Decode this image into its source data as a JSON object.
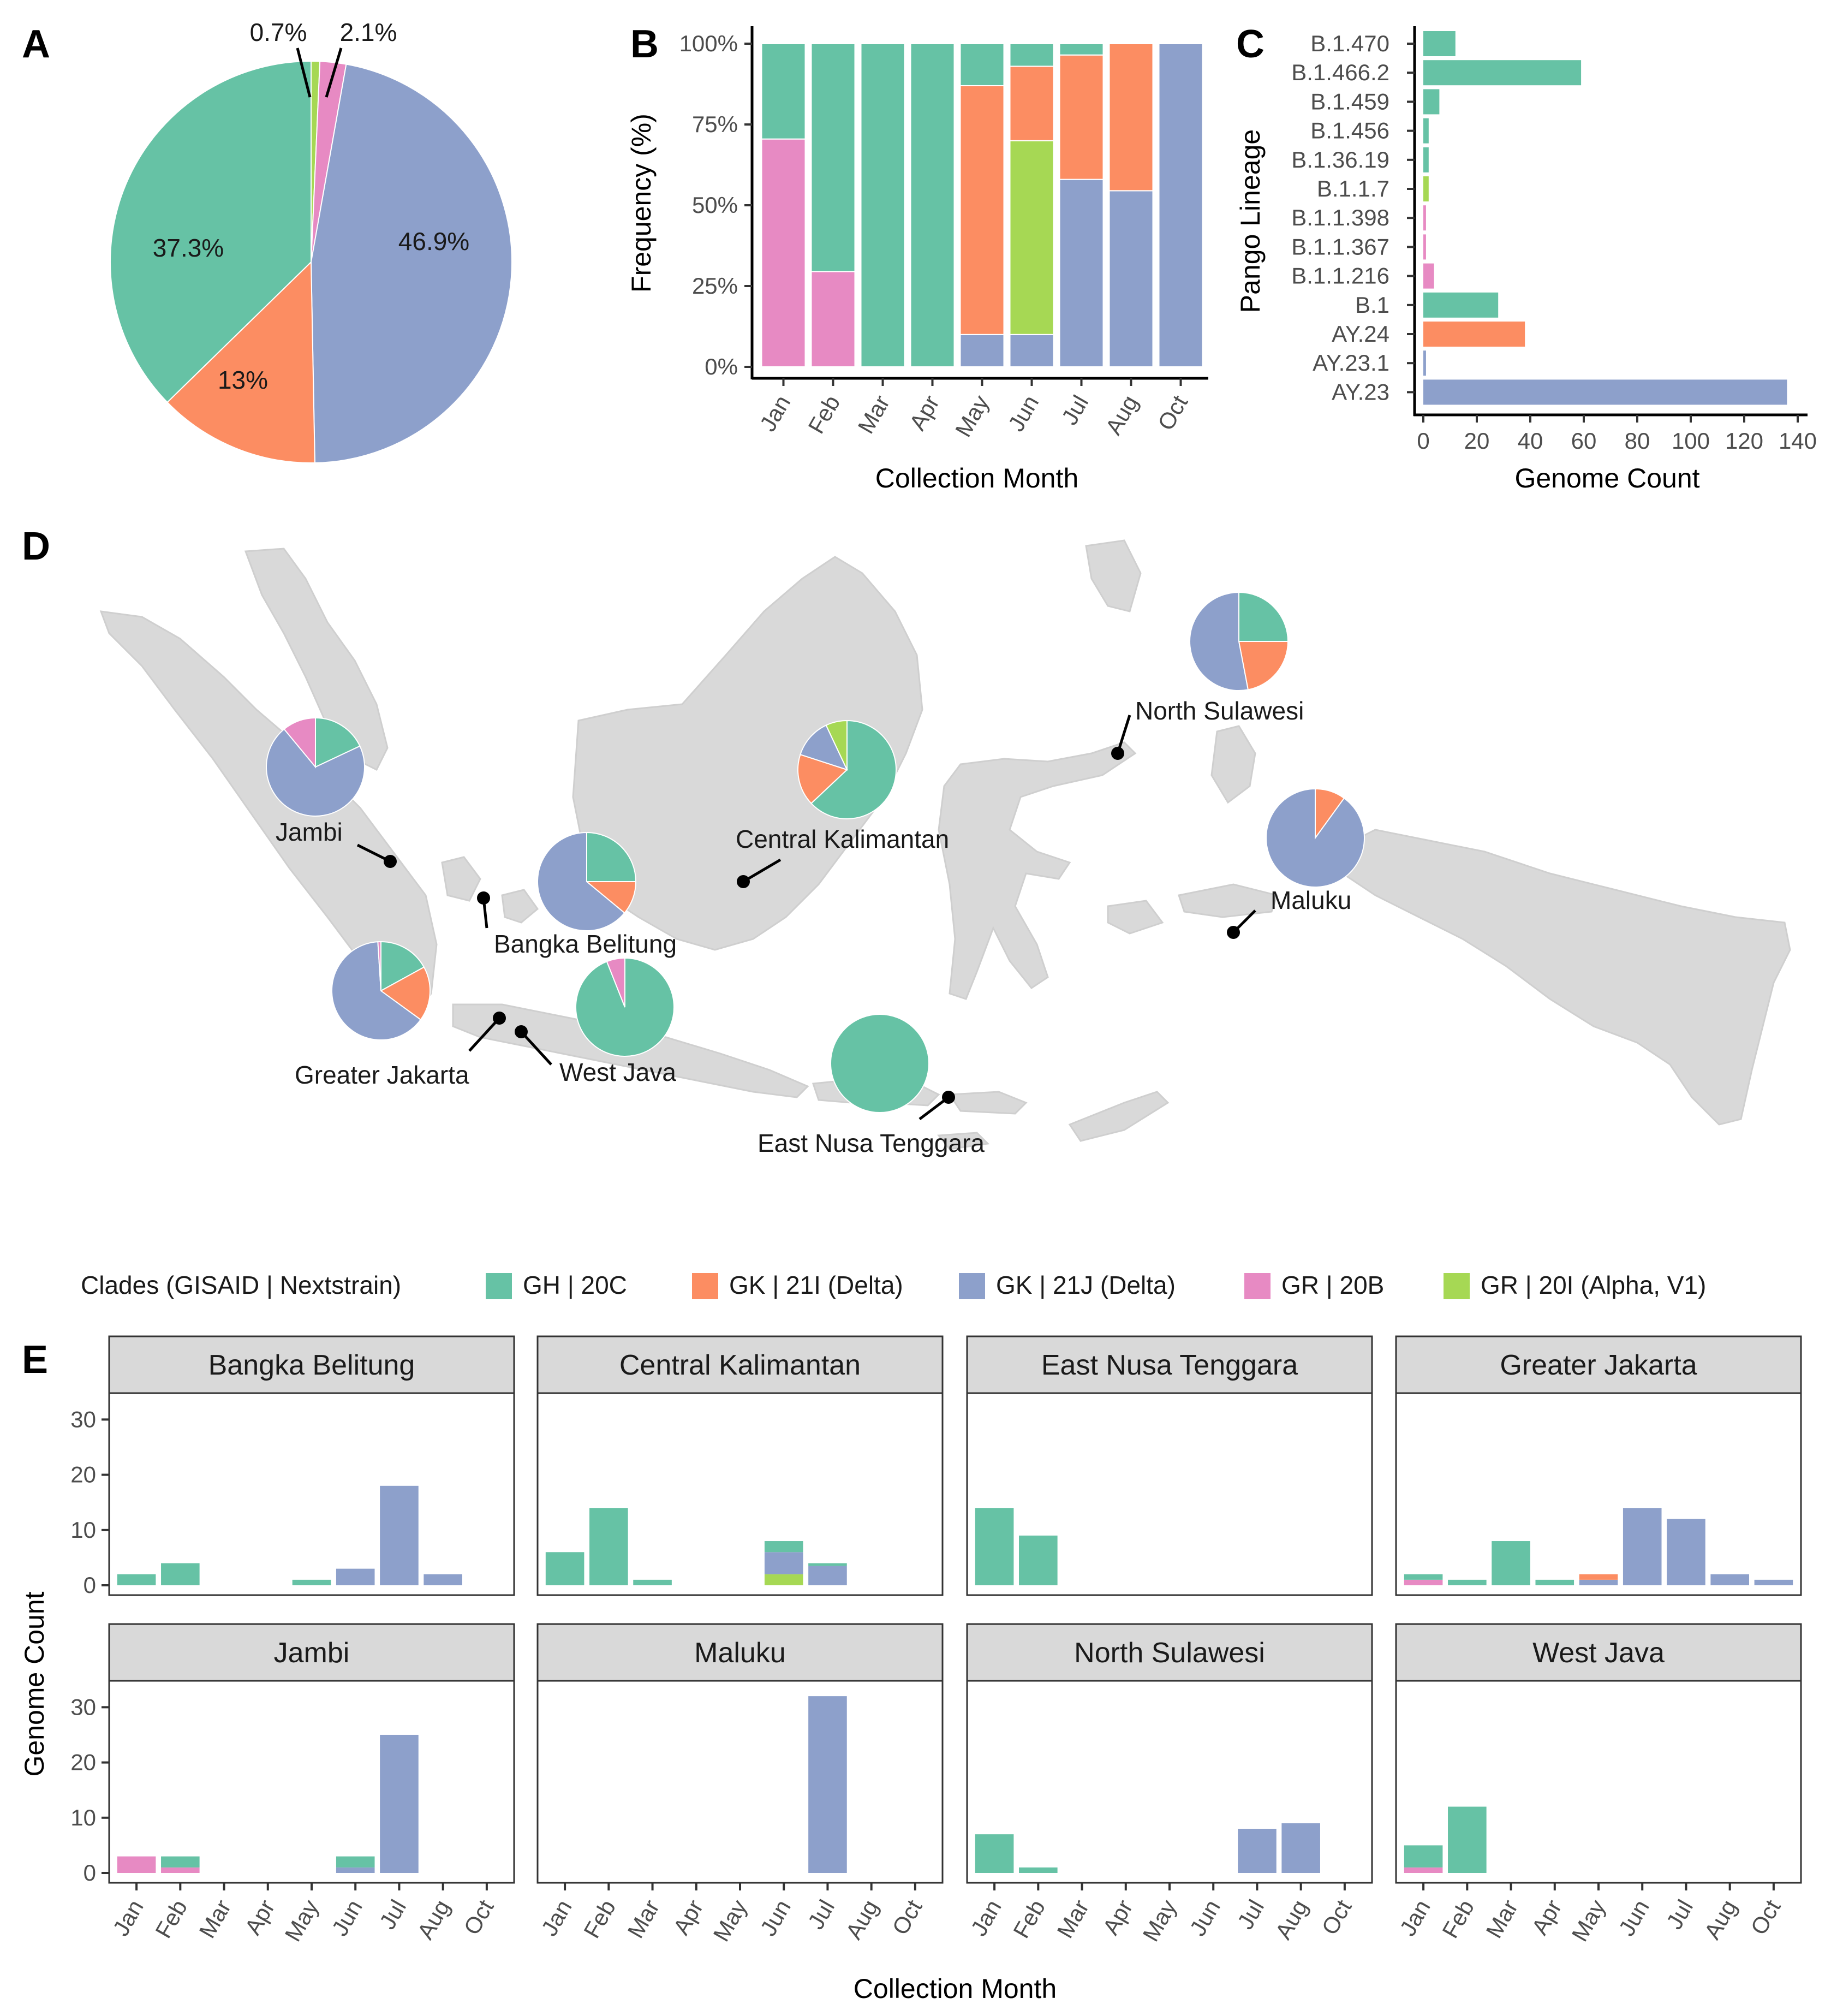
{
  "colors": {
    "GH | 20C": "#66c2a5",
    "GK | 21I (Delta)": "#fc8d62",
    "GK | 21J (Delta)": "#8da0cb",
    "GR | 20B": "#e78ac3",
    "GR | 20I (Alpha, V1)": "#a6d854",
    "land": "#d9d9d9",
    "strip": "#d9d9d9"
  },
  "panels": {
    "A": {
      "letter": "A"
    },
    "B": {
      "letter": "B"
    },
    "C": {
      "letter": "C"
    },
    "D": {
      "letter": "D"
    },
    "E": {
      "letter": "E"
    }
  },
  "legend": {
    "title": "Clades (GISAID | Nextstrain)",
    "items": [
      "GH | 20C",
      "GK | 21I (Delta)",
      "GK | 21J (Delta)",
      "GR | 20B",
      "GR | 20I (Alpha, V1)"
    ]
  },
  "chart_data": [
    {
      "panel": "A",
      "type": "pie",
      "slices": [
        {
          "clade": "GR | 20I (Alpha, V1)",
          "value": 0.7,
          "label": "0.7%"
        },
        {
          "clade": "GR | 20B",
          "value": 2.1,
          "label": "2.1%"
        },
        {
          "clade": "GK | 21J (Delta)",
          "value": 46.9,
          "label": "46.9%"
        },
        {
          "clade": "GK | 21I (Delta)",
          "value": 13.0,
          "label": "13%"
        },
        {
          "clade": "GH | 20C",
          "value": 37.3,
          "label": "37.3%"
        }
      ]
    },
    {
      "panel": "B",
      "type": "bar",
      "stacked": true,
      "xlabel": "Collection Month",
      "ylabel": "Frequency (%)",
      "ytick_labels": [
        "0%",
        "25%",
        "50%",
        "75%",
        "100%"
      ],
      "ylim": [
        0,
        100
      ],
      "categories": [
        "Jan",
        "Feb",
        "Mar",
        "Apr",
        "May",
        "Jun",
        "Jul",
        "Aug",
        "Oct"
      ],
      "series": [
        {
          "name": "GR | 20B",
          "values": [
            70.5,
            29.5,
            0,
            0,
            0,
            0,
            0,
            0,
            0
          ]
        },
        {
          "name": "GK | 21J (Delta)",
          "values": [
            0,
            0,
            0,
            0,
            10,
            10,
            58,
            54.5,
            100
          ]
        },
        {
          "name": "GR | 20I (Alpha, V1)",
          "values": [
            0,
            0,
            0,
            0,
            0,
            60,
            0,
            0,
            0
          ]
        },
        {
          "name": "GK | 21I (Delta)",
          "values": [
            0,
            0,
            0,
            0,
            77,
            23,
            38.5,
            45.5,
            0
          ]
        },
        {
          "name": "GH | 20C",
          "values": [
            29.5,
            70.5,
            100,
            100,
            13,
            7,
            3.5,
            0,
            0
          ]
        }
      ]
    },
    {
      "panel": "C",
      "type": "bar",
      "orientation": "horizontal",
      "xlabel": "Genome Count",
      "ylabel": "Pango Lineage",
      "xlim": [
        0,
        140
      ],
      "xticks": [
        0,
        20,
        40,
        60,
        80,
        100,
        120,
        140
      ],
      "categories": [
        "B.1.470",
        "B.1.466.2",
        "B.1.459",
        "B.1.456",
        "B.1.36.19",
        "B.1.1.7",
        "B.1.1.398",
        "B.1.1.367",
        "B.1.1.216",
        "B.1",
        "AY.24",
        "AY.23.1",
        "AY.23"
      ],
      "values": [
        12,
        59,
        6,
        2,
        2,
        2,
        1,
        1,
        4,
        28,
        38,
        1,
        136
      ],
      "clades": [
        "GH | 20C",
        "GH | 20C",
        "GH | 20C",
        "GH | 20C",
        "GH | 20C",
        "GR | 20I (Alpha, V1)",
        "GR | 20B",
        "GR | 20B",
        "GR | 20B",
        "GH | 20C",
        "GK | 21I (Delta)",
        "GK | 21J (Delta)",
        "GK | 21J (Delta)"
      ]
    },
    {
      "panel": "D",
      "type": "map",
      "regions": [
        {
          "name": "North Sulawesi",
          "slices": [
            {
              "clade": "GH | 20C",
              "value": 25
            },
            {
              "clade": "GK | 21I (Delta)",
              "value": 22
            },
            {
              "clade": "GK | 21J (Delta)",
              "value": 53
            }
          ]
        },
        {
          "name": "Jambi",
          "slices": [
            {
              "clade": "GH | 20C",
              "value": 18
            },
            {
              "clade": "GK | 21J (Delta)",
              "value": 71
            },
            {
              "clade": "GR | 20B",
              "value": 11
            }
          ]
        },
        {
          "name": "Central Kalimantan",
          "slices": [
            {
              "clade": "GH | 20C",
              "value": 63
            },
            {
              "clade": "GK | 21I (Delta)",
              "value": 17
            },
            {
              "clade": "GK | 21J (Delta)",
              "value": 13
            },
            {
              "clade": "GR | 20I (Alpha, V1)",
              "value": 7
            }
          ]
        },
        {
          "name": "Bangka Belitung",
          "slices": [
            {
              "clade": "GH | 20C",
              "value": 25
            },
            {
              "clade": "GK | 21I (Delta)",
              "value": 11
            },
            {
              "clade": "GK | 21J (Delta)",
              "value": 64
            }
          ]
        },
        {
          "name": "Maluku",
          "slices": [
            {
              "clade": "GK | 21I (Delta)",
              "value": 10
            },
            {
              "clade": "GK | 21J (Delta)",
              "value": 90
            }
          ]
        },
        {
          "name": "Greater Jakarta",
          "slices": [
            {
              "clade": "GH | 20C",
              "value": 17
            },
            {
              "clade": "GK | 21I (Delta)",
              "value": 18
            },
            {
              "clade": "GK | 21J (Delta)",
              "value": 64
            },
            {
              "clade": "GR | 20B",
              "value": 1
            }
          ]
        },
        {
          "name": "West Java",
          "slices": [
            {
              "clade": "GH | 20C",
              "value": 94
            },
            {
              "clade": "GR | 20B",
              "value": 6
            }
          ]
        },
        {
          "name": "East Nusa Tenggara",
          "slices": [
            {
              "clade": "GH | 20C",
              "value": 100
            }
          ]
        }
      ]
    },
    {
      "panel": "E",
      "type": "bar",
      "stacked": true,
      "facet": true,
      "xlabel": "Collection Month",
      "ylabel": "Genome Count",
      "ylim": [
        0,
        33
      ],
      "yticks": [
        0,
        10,
        20,
        30
      ],
      "categories": [
        "Jan",
        "Feb",
        "Mar",
        "Apr",
        "May",
        "Jun",
        "Jul",
        "Aug",
        "Oct"
      ],
      "facets": [
        {
          "name": "Bangka Belitung",
          "series": [
            {
              "name": "GH | 20C",
              "values": [
                2,
                4,
                0,
                0,
                1,
                0,
                0,
                0,
                0
              ]
            },
            {
              "name": "GK | 21J (Delta)",
              "values": [
                0,
                0,
                0,
                0,
                0,
                3,
                18,
                2,
                0
              ]
            }
          ]
        },
        {
          "name": "Central Kalimantan",
          "series": [
            {
              "name": "GR | 20I (Alpha, V1)",
              "values": [
                0,
                0,
                0,
                0,
                0,
                2,
                0,
                0,
                0
              ]
            },
            {
              "name": "GK | 21J (Delta)",
              "values": [
                0,
                0,
                0,
                0,
                0,
                4,
                3.5,
                0,
                0
              ]
            },
            {
              "name": "GH | 20C",
              "values": [
                6,
                14,
                1,
                0,
                0,
                2,
                0.5,
                0,
                0
              ]
            }
          ]
        },
        {
          "name": "East Nusa Tenggara",
          "series": [
            {
              "name": "GH | 20C",
              "values": [
                14,
                9,
                0,
                0,
                0,
                0,
                0,
                0,
                0
              ]
            }
          ]
        },
        {
          "name": "Greater Jakarta",
          "series": [
            {
              "name": "GR | 20B",
              "values": [
                1,
                0,
                0,
                0,
                0,
                0,
                0,
                0,
                0
              ]
            },
            {
              "name": "GK | 21J (Delta)",
              "values": [
                0,
                0,
                0,
                0,
                1,
                14,
                12,
                2,
                1
              ]
            },
            {
              "name": "GK | 21I (Delta)",
              "values": [
                0,
                0,
                0,
                0,
                1,
                0,
                0,
                0,
                0
              ]
            },
            {
              "name": "GH | 20C",
              "values": [
                1,
                1,
                8,
                1,
                0,
                0,
                0,
                0,
                0
              ]
            }
          ]
        },
        {
          "name": "Jambi",
          "series": [
            {
              "name": "GR | 20B",
              "values": [
                3,
                1,
                0,
                0,
                0,
                0,
                0,
                0,
                0
              ]
            },
            {
              "name": "GK | 21J (Delta)",
              "values": [
                0,
                0,
                0,
                0,
                0,
                1,
                25,
                0,
                0
              ]
            },
            {
              "name": "GH | 20C",
              "values": [
                0,
                2,
                0,
                0,
                0,
                2,
                0,
                0,
                0
              ]
            }
          ]
        },
        {
          "name": "Maluku",
          "series": [
            {
              "name": "GK | 21J (Delta)",
              "values": [
                0,
                0,
                0,
                0,
                0,
                0,
                32,
                0,
                0
              ]
            }
          ]
        },
        {
          "name": "North Sulawesi",
          "series": [
            {
              "name": "GH | 20C",
              "values": [
                7,
                1,
                0,
                0,
                0,
                0,
                0,
                0,
                0
              ]
            },
            {
              "name": "GK | 21J (Delta)",
              "values": [
                0,
                0,
                0,
                0,
                0,
                0,
                8,
                9,
                0
              ]
            }
          ]
        },
        {
          "name": "West Java",
          "series": [
            {
              "name": "GR | 20B",
              "values": [
                1,
                0,
                0,
                0,
                0,
                0,
                0,
                0,
                0
              ]
            },
            {
              "name": "GH | 20C",
              "values": [
                4,
                12,
                0,
                0,
                0,
                0,
                0,
                0,
                0
              ]
            }
          ]
        }
      ]
    }
  ]
}
